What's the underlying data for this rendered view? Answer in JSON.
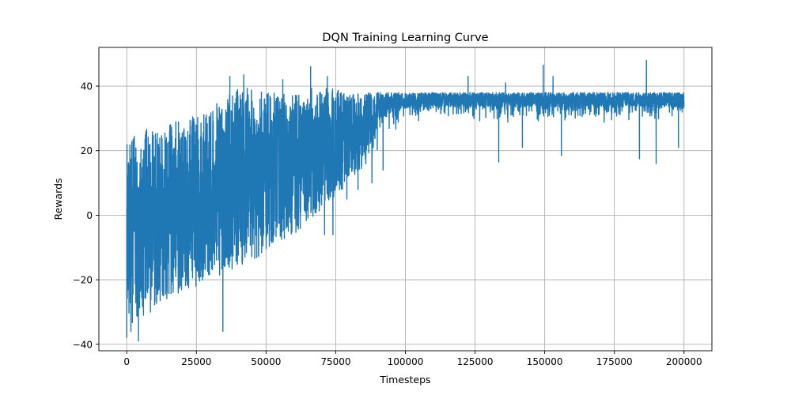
{
  "chart_data": {
    "type": "line",
    "title": "DQN Training Learning Curve",
    "xlabel": "Timesteps",
    "ylabel": "Rewards",
    "xlim": [
      -10000,
      210000
    ],
    "ylim": [
      -42,
      52
    ],
    "xticks": [
      0,
      25000,
      50000,
      75000,
      100000,
      125000,
      150000,
      175000,
      200000
    ],
    "xtick_labels": [
      "0",
      "25000",
      "50000",
      "75000",
      "100000",
      "125000",
      "150000",
      "175000",
      "200000"
    ],
    "yticks": [
      -40,
      -20,
      0,
      20,
      40
    ],
    "ytick_labels": [
      "−40",
      "−20",
      "0",
      "20",
      "40"
    ],
    "grid": true,
    "series": [
      {
        "color": "#1f77b4",
        "band_x": [
          0,
          5000,
          10000,
          20000,
          30000,
          40000,
          50000,
          60000,
          70000,
          80000,
          90000,
          100000,
          120000,
          150000,
          180000,
          200000
        ],
        "band_high": [
          22,
          28,
          26,
          30,
          33,
          40,
          38,
          38,
          40,
          38,
          38,
          38,
          38,
          38,
          38,
          38
        ],
        "band_low": [
          -36,
          -30,
          -28,
          -24,
          -20,
          -16,
          -12,
          -6,
          2,
          10,
          20,
          28,
          28,
          28,
          28,
          28
        ],
        "spikes": [
          [
            0,
            -38
          ],
          [
            1500,
            -36
          ],
          [
            4200,
            -39
          ],
          [
            6000,
            -31
          ],
          [
            8500,
            -30
          ],
          [
            34500,
            -36
          ],
          [
            37000,
            43
          ],
          [
            42000,
            43.5
          ],
          [
            56000,
            42
          ],
          [
            66000,
            46
          ],
          [
            72000,
            43
          ],
          [
            122500,
            43
          ],
          [
            136000,
            41
          ],
          [
            149500,
            46.5
          ],
          [
            153000,
            43
          ],
          [
            186500,
            48
          ],
          [
            133500,
            16.5
          ],
          [
            142000,
            21
          ],
          [
            156000,
            18.5
          ],
          [
            184000,
            17.5
          ],
          [
            190000,
            16
          ],
          [
            198000,
            21
          ],
          [
            88000,
            10
          ],
          [
            92000,
            14
          ],
          [
            79000,
            5
          ],
          [
            83000,
            8
          ],
          [
            71000,
            -6
          ],
          [
            74000,
            -6
          ]
        ]
      }
    ]
  }
}
